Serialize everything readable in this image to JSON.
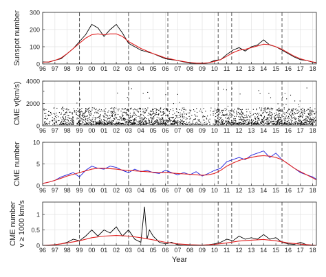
{
  "chart_data": [
    {
      "type": "line",
      "ylabel": "Sunspot number",
      "xlim": [
        1996,
        2018.3
      ],
      "ylim": [
        0,
        300
      ],
      "yticks": [
        0,
        100,
        200,
        300
      ],
      "grid": true,
      "series": [
        {
          "color": "#000000",
          "x": [
            1996.0,
            1996.5,
            1997.0,
            1997.5,
            1998.0,
            1998.5,
            1999.0,
            1999.5,
            2000.0,
            2000.5,
            2001.0,
            2001.5,
            2002.0,
            2002.5,
            2003.0,
            2003.5,
            2004.0,
            2004.5,
            2005.0,
            2005.5,
            2006.0,
            2006.5,
            2007.0,
            2007.5,
            2008.0,
            2008.5,
            2009.0,
            2009.5,
            2010.0,
            2010.5,
            2011.0,
            2011.5,
            2012.0,
            2012.5,
            2013.0,
            2013.5,
            2014.0,
            2014.5,
            2015.0,
            2015.5,
            2016.0,
            2016.5,
            2017.0,
            2017.5,
            2018.0,
            2018.3
          ],
          "y": [
            12,
            10,
            22,
            30,
            60,
            90,
            130,
            170,
            230,
            210,
            160,
            200,
            230,
            180,
            120,
            100,
            80,
            70,
            60,
            45,
            30,
            25,
            20,
            12,
            5,
            4,
            3,
            6,
            20,
            25,
            55,
            80,
            95,
            75,
            100,
            110,
            140,
            110,
            100,
            80,
            60,
            40,
            25,
            20,
            10,
            5
          ]
        },
        {
          "color": "#e02020",
          "x": [
            1996.0,
            1996.5,
            1997.0,
            1997.5,
            1998.0,
            1998.5,
            1999.0,
            1999.5,
            2000.0,
            2000.5,
            2001.0,
            2001.5,
            2002.0,
            2002.5,
            2003.0,
            2003.5,
            2004.0,
            2004.5,
            2005.0,
            2005.5,
            2006.0,
            2006.5,
            2007.0,
            2007.5,
            2008.0,
            2008.5,
            2009.0,
            2009.5,
            2010.0,
            2010.5,
            2011.0,
            2011.5,
            2012.0,
            2012.5,
            2013.0,
            2013.5,
            2014.0,
            2014.5,
            2015.0,
            2015.5,
            2016.0,
            2016.5,
            2017.0,
            2017.5,
            2018.0,
            2018.3
          ],
          "y": [
            10,
            12,
            20,
            35,
            60,
            90,
            120,
            150,
            170,
            175,
            170,
            175,
            175,
            160,
            130,
            110,
            90,
            75,
            60,
            48,
            35,
            28,
            20,
            14,
            8,
            5,
            4,
            6,
            15,
            25,
            45,
            65,
            80,
            85,
            95,
            105,
            115,
            112,
            100,
            85,
            65,
            45,
            30,
            20,
            12,
            8
          ]
        }
      ]
    },
    {
      "type": "scatter",
      "ylabel": "CME v(km/s)",
      "xlim": [
        1996,
        2018.3
      ],
      "ylim": [
        0,
        4000
      ],
      "yticks": [
        0,
        2000,
        4000
      ],
      "grid": true,
      "series": [
        {
          "color": "#000000",
          "note_points": "dense daily CME speed points, mostly 200-1500 km/s with occasional values up to ~3500 km/s"
        }
      ]
    },
    {
      "type": "line",
      "ylabel": "CME number",
      "xlim": [
        1996,
        2018.3
      ],
      "ylim": [
        0,
        10
      ],
      "yticks": [
        0,
        5,
        10
      ],
      "grid": true,
      "series": [
        {
          "color": "#1f1fdc",
          "x": [
            1996.0,
            1996.5,
            1997.0,
            1997.5,
            1998.0,
            1998.5,
            1999.0,
            1999.5,
            2000.0,
            2000.5,
            2001.0,
            2001.5,
            2002.0,
            2002.5,
            2003.0,
            2003.5,
            2004.0,
            2004.5,
            2005.0,
            2005.5,
            2006.0,
            2006.5,
            2007.0,
            2007.5,
            2008.0,
            2008.5,
            2009.0,
            2009.5,
            2010.0,
            2010.5,
            2011.0,
            2011.5,
            2012.0,
            2012.5,
            2013.0,
            2013.5,
            2014.0,
            2014.5,
            2015.0,
            2015.5,
            2016.0,
            2016.5,
            2017.0,
            2017.5,
            2018.0,
            2018.3
          ],
          "y": [
            0.5,
            0.8,
            1.2,
            2.0,
            2.5,
            3.0,
            2.0,
            3.5,
            4.5,
            4.0,
            3.8,
            4.5,
            4.2,
            3.5,
            3.0,
            3.8,
            3.2,
            3.5,
            3.0,
            2.8,
            3.5,
            3.0,
            2.5,
            3.0,
            2.5,
            3.2,
            2.2,
            2.8,
            3.5,
            4.0,
            5.5,
            6.0,
            6.5,
            6.0,
            7.0,
            7.5,
            8.0,
            6.5,
            7.5,
            6.0,
            5.0,
            4.0,
            3.0,
            2.5,
            2.0,
            1.5
          ]
        },
        {
          "color": "#e02020",
          "x": [
            1996.0,
            1996.5,
            1997.0,
            1997.5,
            1998.0,
            1998.5,
            1999.0,
            1999.5,
            2000.0,
            2000.5,
            2001.0,
            2001.5,
            2002.0,
            2002.5,
            2003.0,
            2003.5,
            2004.0,
            2004.5,
            2005.0,
            2005.5,
            2006.0,
            2006.5,
            2007.0,
            2007.5,
            2008.0,
            2008.5,
            2009.0,
            2009.5,
            2010.0,
            2010.5,
            2011.0,
            2011.5,
            2012.0,
            2012.5,
            2013.0,
            2013.5,
            2014.0,
            2014.5,
            2015.0,
            2015.5,
            2016.0,
            2016.5,
            2017.0,
            2017.5,
            2018.0,
            2018.3
          ],
          "y": [
            0.5,
            0.8,
            1.2,
            1.7,
            2.2,
            2.6,
            3.0,
            3.4,
            3.8,
            4.0,
            4.0,
            3.9,
            3.8,
            3.6,
            3.5,
            3.4,
            3.3,
            3.2,
            3.1,
            3.0,
            3.0,
            2.9,
            2.8,
            2.7,
            2.6,
            2.5,
            2.4,
            2.5,
            2.8,
            3.5,
            4.5,
            5.2,
            5.8,
            6.2,
            6.5,
            6.8,
            6.9,
            6.8,
            6.5,
            6.0,
            5.0,
            4.0,
            3.2,
            2.5,
            1.8,
            1.3
          ]
        }
      ]
    },
    {
      "type": "line",
      "ylabel_line1": "CME number",
      "ylabel_line2": "v ≥ 1000 km/s",
      "xlabel": "Year",
      "xlim": [
        1996,
        2018.3
      ],
      "ylim": [
        0,
        1.4
      ],
      "yticks": [
        0,
        0.5,
        1
      ],
      "xticks": [
        1996,
        1997,
        1998,
        1999,
        2000,
        2001,
        2002,
        2003,
        2004,
        2005,
        2006,
        2007,
        2008,
        2009,
        2010,
        2011,
        2012,
        2013,
        2014,
        2015,
        2016,
        2017,
        2018
      ],
      "xtick_labels": [
        "96",
        "97",
        "98",
        "99",
        "00",
        "01",
        "02",
        "03",
        "04",
        "05",
        "06",
        "07",
        "08",
        "09",
        "10",
        "11",
        "12",
        "13",
        "14",
        "15",
        "16",
        "17",
        "18"
      ],
      "grid": true,
      "series": [
        {
          "color": "#000000",
          "x": [
            1996.0,
            1996.5,
            1997.0,
            1997.5,
            1998.0,
            1998.5,
            1999.0,
            1999.5,
            2000.0,
            2000.5,
            2001.0,
            2001.5,
            2002.0,
            2002.5,
            2003.0,
            2003.5,
            2004.0,
            2004.3,
            2004.5,
            2004.7,
            2005.0,
            2005.5,
            2006.0,
            2006.5,
            2007.0,
            2007.5,
            2008.0,
            2008.5,
            2009.0,
            2009.5,
            2010.0,
            2010.5,
            2011.0,
            2011.5,
            2012.0,
            2012.5,
            2013.0,
            2013.5,
            2014.0,
            2014.5,
            2015.0,
            2015.5,
            2016.0,
            2016.5,
            2017.0,
            2017.5,
            2018.0,
            2018.3
          ],
          "y": [
            0,
            0,
            0.02,
            0.05,
            0.1,
            0.2,
            0.15,
            0.3,
            0.5,
            0.3,
            0.5,
            0.4,
            0.6,
            0.3,
            0.5,
            0.2,
            0.1,
            1.25,
            0.2,
            0.5,
            0.3,
            0.1,
            0.05,
            0.1,
            0.02,
            0.0,
            0.0,
            0.0,
            0.0,
            0.02,
            0.05,
            0.1,
            0.2,
            0.15,
            0.3,
            0.2,
            0.25,
            0.2,
            0.35,
            0.2,
            0.25,
            0.1,
            0.05,
            0.03,
            0.1,
            0.02,
            0.0,
            0.0
          ]
        },
        {
          "color": "#e02020",
          "x": [
            1996.0,
            1997.0,
            1998.0,
            1999.0,
            2000.0,
            2001.0,
            2002.0,
            2003.0,
            2004.0,
            2005.0,
            2006.0,
            2007.0,
            2008.0,
            2009.0,
            2010.0,
            2011.0,
            2012.0,
            2013.0,
            2014.0,
            2015.0,
            2016.0,
            2017.0,
            2018.0,
            2018.3
          ],
          "y": [
            0.0,
            0.02,
            0.08,
            0.15,
            0.25,
            0.3,
            0.32,
            0.3,
            0.25,
            0.18,
            0.1,
            0.05,
            0.02,
            0.01,
            0.03,
            0.08,
            0.14,
            0.17,
            0.19,
            0.15,
            0.08,
            0.04,
            0.01,
            0.0
          ]
        }
      ]
    }
  ],
  "dashed_verticals": [
    1999.0,
    2003.0,
    2006.2,
    2010.3,
    2011.4,
    2015.5
  ]
}
